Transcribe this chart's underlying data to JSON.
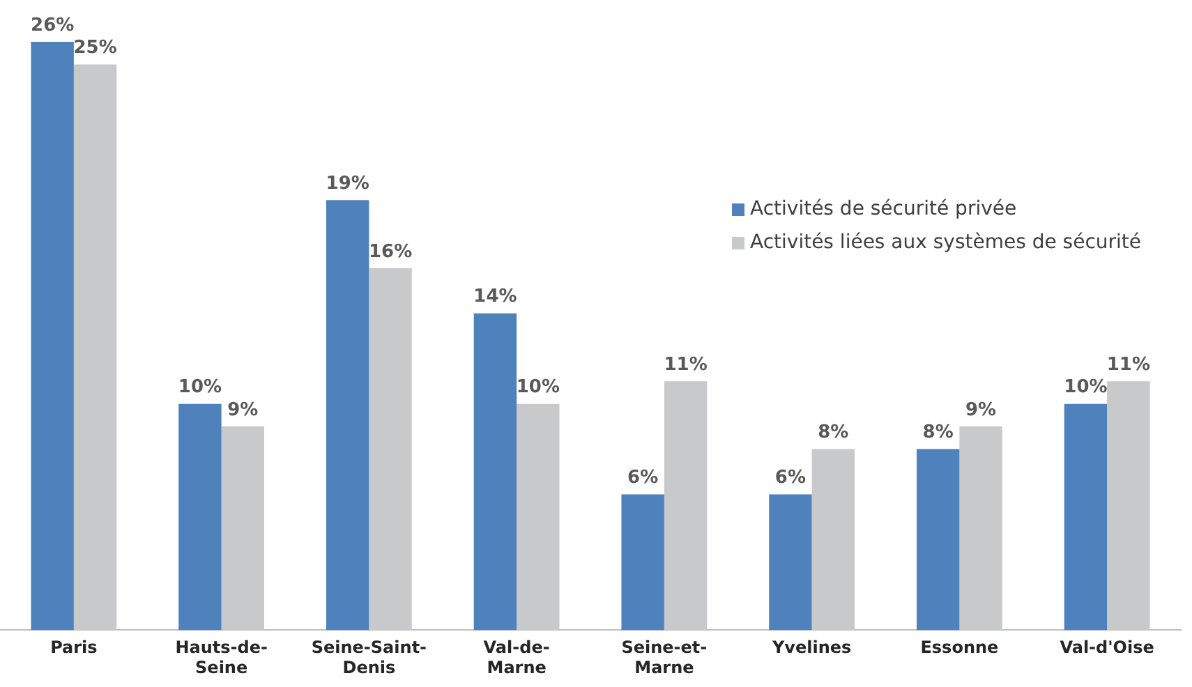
{
  "chart_data": {
    "type": "bar",
    "categories": [
      "Paris",
      "Hauts-de-Seine",
      "Seine-Saint-Denis",
      "Val-de-Marne",
      "Seine-et-Marne",
      "Yvelines",
      "Essonne",
      "Val-d'Oise"
    ],
    "series": [
      {
        "name": "Activités de sécurité privée",
        "color": "#4f81bd",
        "values": [
          26,
          10,
          19,
          14,
          6,
          6,
          8,
          10
        ],
        "value_labels": [
          "26%",
          "10%",
          "19%",
          "14%",
          "6%",
          "6%",
          "8%",
          "10%"
        ]
      },
      {
        "name": "Activités liées aux systèmes de sécurité",
        "color": "#c8c9cb",
        "values": [
          25,
          9,
          16,
          10,
          11,
          8,
          9,
          11
        ],
        "value_labels": [
          "25%",
          "9%",
          "16%",
          "10%",
          "11%",
          "8%",
          "9%",
          "11%"
        ]
      }
    ],
    "legend": "top right",
    "grid": false,
    "tick_labels": "x"
  }
}
